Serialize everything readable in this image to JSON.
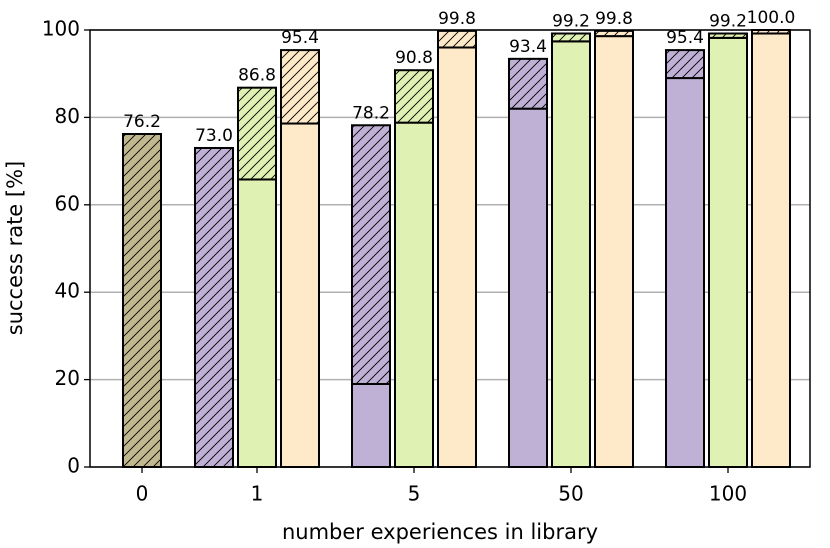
{
  "chart_data": {
    "type": "bar",
    "xlabel": "number experiences in library",
    "ylabel": "success rate [%]",
    "categories": [
      "0",
      "1",
      "5",
      "50",
      "100"
    ],
    "ylim": [
      0,
      100
    ],
    "yticks": [
      0,
      20,
      40,
      60,
      80,
      100
    ],
    "grid": true,
    "series": [
      {
        "color": "#c2b890",
        "base": [
          null,
          null,
          null,
          null,
          null
        ],
        "values": [
          76.2,
          null,
          null,
          null,
          null
        ],
        "value_labels": [
          "76.2",
          null,
          null,
          null,
          null
        ]
      },
      {
        "color": "#bfb1d5",
        "base": [
          null,
          null,
          19,
          82,
          89
        ],
        "values": [
          null,
          73.0,
          78.2,
          93.4,
          95.4
        ],
        "value_labels": [
          null,
          "73.0",
          "78.2",
          "93.4",
          "95.4"
        ]
      },
      {
        "color": "#dff2b4",
        "base": [
          null,
          65.8,
          78.8,
          97.4,
          98.2
        ],
        "values": [
          null,
          86.8,
          90.8,
          99.2,
          99.2
        ],
        "value_labels": [
          null,
          "86.8",
          "90.8",
          "99.2",
          "99.2"
        ]
      },
      {
        "color": "#fee9c8",
        "base": [
          null,
          78.6,
          96,
          98.6,
          99.2
        ],
        "values": [
          null,
          95.4,
          99.8,
          99.8,
          100.0
        ],
        "value_labels": [
          null,
          "95.4",
          "99.8",
          "99.8",
          "100.0"
        ]
      }
    ]
  }
}
